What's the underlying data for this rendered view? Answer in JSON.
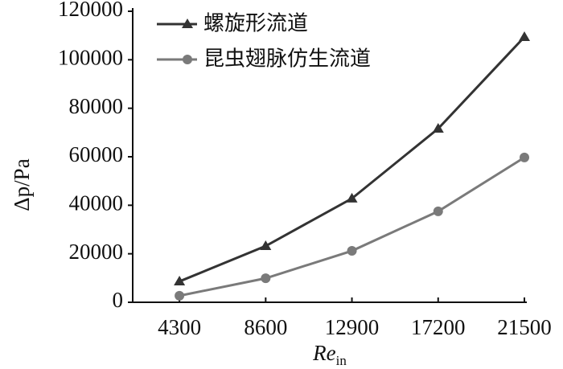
{
  "chart_data": {
    "type": "line",
    "ylabel": "Δp/Pa",
    "xlabel": {
      "text": "Re",
      "subscript": "in"
    },
    "x": [
      4300,
      8600,
      12900,
      17200,
      21500
    ],
    "xlim": [
      1970,
      21620
    ],
    "xticks": [
      4300,
      8600,
      12900,
      17200,
      21500
    ],
    "ylim": [
      0,
      120000
    ],
    "yticks": [
      0,
      20000,
      40000,
      60000,
      80000,
      100000,
      120000
    ],
    "grid": false,
    "legend": "upper left",
    "series": [
      {
        "name": "螺旋形流道",
        "color": "#333333",
        "marker": "triangle",
        "values": [
          8600,
          23200,
          42800,
          71600,
          109400
        ]
      },
      {
        "name": "昆虫翅脉仿生流道",
        "color": "#7a7a7a",
        "marker": "circle",
        "values": [
          2700,
          9900,
          21200,
          37500,
          59700
        ]
      }
    ]
  }
}
